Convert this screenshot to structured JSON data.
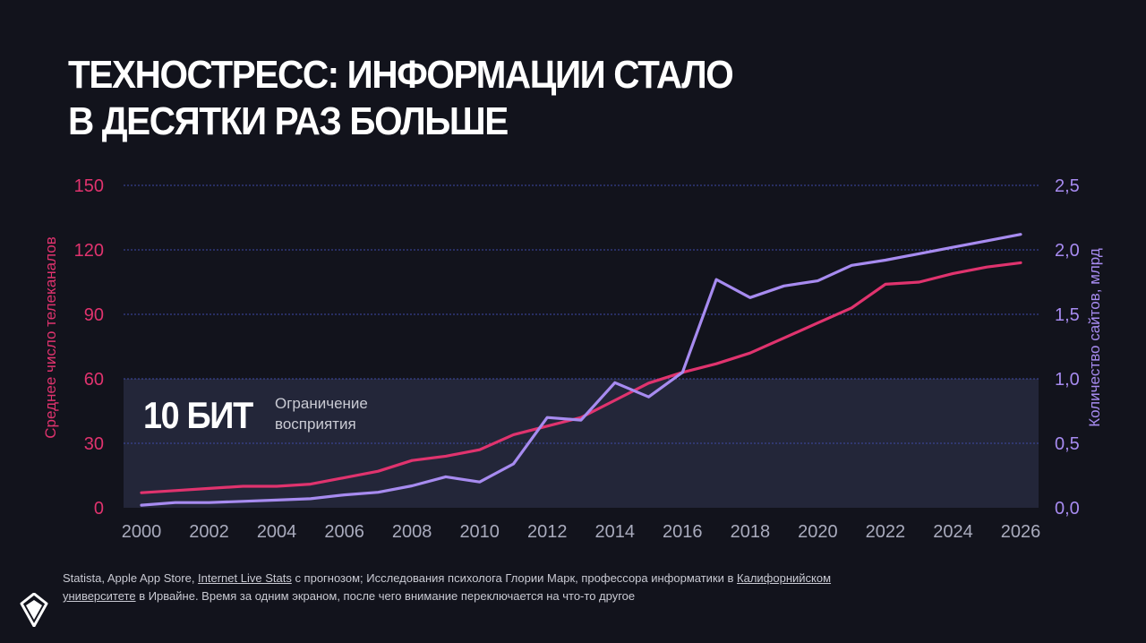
{
  "page": {
    "title_line1": "ТЕХНОСТРЕСС: ИНФОРМАЦИИ СТАЛО",
    "title_line2": "В ДЕСЯТКИ РАЗ БОЛЬШЕ"
  },
  "colors": {
    "background": "#12131c",
    "tv_series": "#e0336e",
    "sites_series": "#a78bf0",
    "band": "#232639",
    "grid": "#3f4aa8"
  },
  "chart_data": {
    "type": "line",
    "title": "ТЕХНОСТРЕСС: ИНФОРМАЦИИ СТАЛО В ДЕСЯТКИ РАЗ БОЛЬШЕ",
    "x": [
      2000,
      2001,
      2002,
      2003,
      2004,
      2005,
      2006,
      2007,
      2008,
      2009,
      2010,
      2011,
      2012,
      2013,
      2014,
      2015,
      2016,
      2017,
      2018,
      2019,
      2020,
      2021,
      2022,
      2023,
      2024,
      2025,
      2026
    ],
    "x_ticks": [
      "2000",
      "2002",
      "2004",
      "2006",
      "2008",
      "2010",
      "2012",
      "2014",
      "2016",
      "2018",
      "2020",
      "2022",
      "2024",
      "2026"
    ],
    "xlim": [
      2000,
      2026
    ],
    "left_axis": {
      "label": "Среднее число телеканалов",
      "ylim": [
        0,
        150
      ],
      "ticks": [
        "0",
        "30",
        "60",
        "90",
        "120",
        "150"
      ]
    },
    "right_axis": {
      "label": "Количество сайтов, млрд",
      "ylim": [
        0,
        2.5
      ],
      "ticks": [
        "0,0",
        "0,5",
        "1,0",
        "1,5",
        "2,0",
        "2,5"
      ]
    },
    "series": [
      {
        "name": "Среднее число телеканалов",
        "axis": "left",
        "values": [
          7,
          8,
          9,
          10,
          10,
          11,
          14,
          17,
          22,
          24,
          27,
          34,
          38,
          42,
          50,
          58,
          63,
          67,
          72,
          79,
          86,
          93,
          104,
          105,
          109,
          112,
          114
        ]
      },
      {
        "name": "Количество сайтов, млрд",
        "axis": "right",
        "values": [
          0.02,
          0.04,
          0.04,
          0.05,
          0.06,
          0.07,
          0.1,
          0.12,
          0.17,
          0.24,
          0.2,
          0.34,
          0.7,
          0.68,
          0.97,
          0.86,
          1.05,
          1.77,
          1.63,
          1.72,
          1.76,
          1.88,
          1.92,
          1.97,
          2.02,
          2.07,
          2.12
        ]
      }
    ],
    "band": {
      "from": 0,
      "to": 60,
      "axis": "left",
      "label_big": "10 БИТ",
      "label_small_line1": "Ограничение",
      "label_small_line2": "восприятия"
    },
    "grid": true
  },
  "source": {
    "line1_pre": "Statista, Apple App Store, ",
    "line1_link1": "Internet Live Stats",
    "line1_mid": " с прогнозом; Исследования психолога Глории Марк, профессора информатики в ",
    "line1_link2": "Калифорнийском",
    "line2_link": "университете",
    "line2_post": " в Ирвайне. Время за одним экраном, после чего внимание переключается на что-то другое"
  }
}
